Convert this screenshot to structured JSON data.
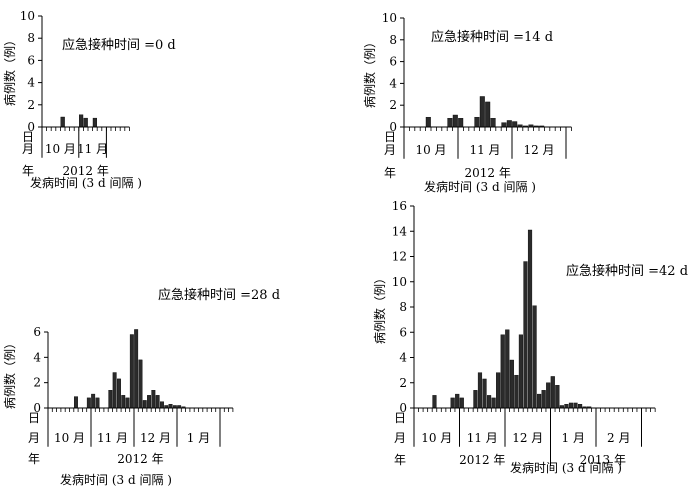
{
  "figure_text": {
    "ylabel": "病例数（例）",
    "xlabel": "发病时间 (3 d 间隔 )",
    "row_ri": "日",
    "row_yue": "月",
    "row_nian": "年"
  },
  "chart_data": [
    {
      "type": "bar",
      "title": "应急接种时间 =0 d",
      "ylabel": "病例数（例）",
      "xlabel": "发病时间 (3 d 间隔 )",
      "ylim": [
        0,
        10
      ],
      "yticks": [
        0,
        2,
        4,
        6,
        8,
        10
      ],
      "bin_days": 3,
      "values": [
        0,
        0,
        0,
        0,
        0.9,
        0,
        0,
        0,
        1.1,
        0.8,
        0,
        0.8,
        0,
        0,
        0,
        0,
        0,
        0,
        0
      ],
      "months": [
        {
          "label": "10 月",
          "bins": 8
        },
        {
          "label": "11 月",
          "bins": 6
        }
      ],
      "years": [
        {
          "label": "2012 年",
          "bins": 19
        }
      ]
    },
    {
      "type": "bar",
      "title": "应急接种时间 =14 d",
      "ylabel": "病例数（例）",
      "xlabel": "发病时间 (3 d 间隔 )",
      "ylim": [
        0,
        10
      ],
      "yticks": [
        0,
        2,
        4,
        6,
        8,
        10
      ],
      "bin_days": 3,
      "values": [
        0,
        0,
        0,
        0,
        0.9,
        0,
        0,
        0,
        0.8,
        1.1,
        0.8,
        0,
        0,
        0.9,
        2.8,
        2.3,
        0.8,
        0,
        0.4,
        0.6,
        0.5,
        0.2,
        0.1,
        0.2,
        0.1,
        0.1,
        0,
        0,
        0,
        0,
        0
      ],
      "months": [
        {
          "label": "10 月",
          "bins": 10
        },
        {
          "label": "11 月",
          "bins": 10
        },
        {
          "label": "12 月",
          "bins": 10
        }
      ],
      "years": [
        {
          "label": "2012 年",
          "bins": 31
        }
      ]
    },
    {
      "type": "bar",
      "title": "应急接种时间 =28 d",
      "ylabel": "病例数（例）",
      "xlabel": "发病时间 (3 d 间隔 )",
      "ylim": [
        0,
        6
      ],
      "yticks": [
        0,
        2,
        4,
        6
      ],
      "bin_days": 3,
      "values": [
        0,
        0,
        0,
        0,
        0,
        0,
        0.9,
        0,
        0,
        0.8,
        1.1,
        0.8,
        0,
        0,
        1.4,
        2.8,
        2.3,
        1.0,
        0.8,
        5.8,
        6.2,
        3.8,
        0.6,
        1.0,
        1.4,
        1.0,
        0.5,
        0.2,
        0.3,
        0.2,
        0.2,
        0.1,
        0,
        0,
        0,
        0,
        0,
        0,
        0,
        0,
        0,
        0,
        0
      ],
      "months": [
        {
          "label": "10 月",
          "bins": 10
        },
        {
          "label": "11 月",
          "bins": 10
        },
        {
          "label": "12 月",
          "bins": 10
        },
        {
          "label": "1 月",
          "bins": 10
        }
      ],
      "years": [
        {
          "label": "2012 年",
          "bins": 43
        }
      ]
    },
    {
      "type": "bar",
      "title": "应急接种时间 =42 d",
      "ylabel": "病例数（例）",
      "xlabel": "发病时间 (3 d 间隔 )",
      "ylim": [
        0,
        16
      ],
      "yticks": [
        0,
        2,
        4,
        6,
        8,
        10,
        12,
        14,
        16
      ],
      "bin_days": 3,
      "values": [
        0,
        0,
        0,
        0,
        1.0,
        0,
        0,
        0,
        0.8,
        1.1,
        0.8,
        0,
        0,
        1.4,
        2.8,
        2.3,
        1.0,
        0.8,
        2.8,
        5.8,
        6.2,
        3.8,
        2.6,
        5.8,
        11.6,
        14.1,
        8.1,
        1.1,
        1.4,
        2.0,
        2.5,
        1.8,
        0.2,
        0.3,
        0.4,
        0.4,
        0.3,
        0.1,
        0.1,
        0,
        0,
        0,
        0,
        0,
        0,
        0,
        0,
        0,
        0,
        0,
        0,
        0,
        0
      ],
      "months": [
        {
          "label": "10 月",
          "bins": 10
        },
        {
          "label": "11 月",
          "bins": 10
        },
        {
          "label": "12 月",
          "bins": 10
        },
        {
          "label": "1 月",
          "bins": 10
        },
        {
          "label": "2 月",
          "bins": 10
        }
      ],
      "years": [
        {
          "label": "2012 年",
          "bins": 30
        },
        {
          "label": "2013 年",
          "bins": 23
        }
      ]
    }
  ]
}
